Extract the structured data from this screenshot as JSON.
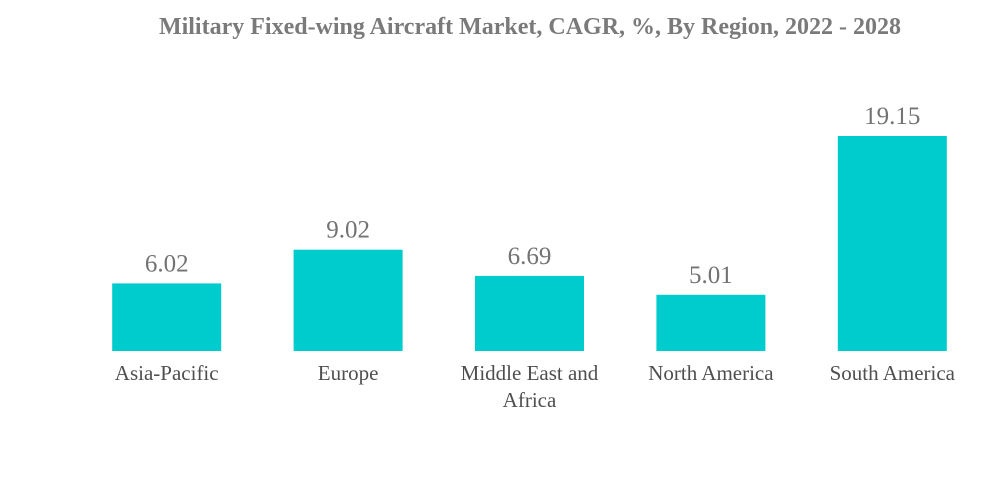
{
  "chart_data": {
    "type": "bar",
    "title": "Military Fixed-wing Aircraft Market, CAGR, %, By Region, 2022 - 2028",
    "categories": [
      "Asia-Pacific",
      "Europe",
      "Middle East and Africa",
      "North America",
      "South America"
    ],
    "category_lines": [
      [
        "Asia-Pacific"
      ],
      [
        "Europe"
      ],
      [
        "Middle East and",
        "Africa"
      ],
      [
        "North America"
      ],
      [
        "South America"
      ]
    ],
    "values": [
      6.02,
      9.02,
      6.69,
      5.01,
      19.15
    ],
    "value_labels": [
      "6.02",
      "9.02",
      "6.69",
      "5.01",
      "19.15"
    ],
    "xlabel": "",
    "ylabel": "",
    "ylim": [
      0,
      19.15
    ],
    "grid": false,
    "legend": "none",
    "colors": {
      "bar": "#00ccce",
      "title": "#7a7a7a",
      "value_label": "#737373",
      "category_label": "#4f4f4f"
    }
  }
}
